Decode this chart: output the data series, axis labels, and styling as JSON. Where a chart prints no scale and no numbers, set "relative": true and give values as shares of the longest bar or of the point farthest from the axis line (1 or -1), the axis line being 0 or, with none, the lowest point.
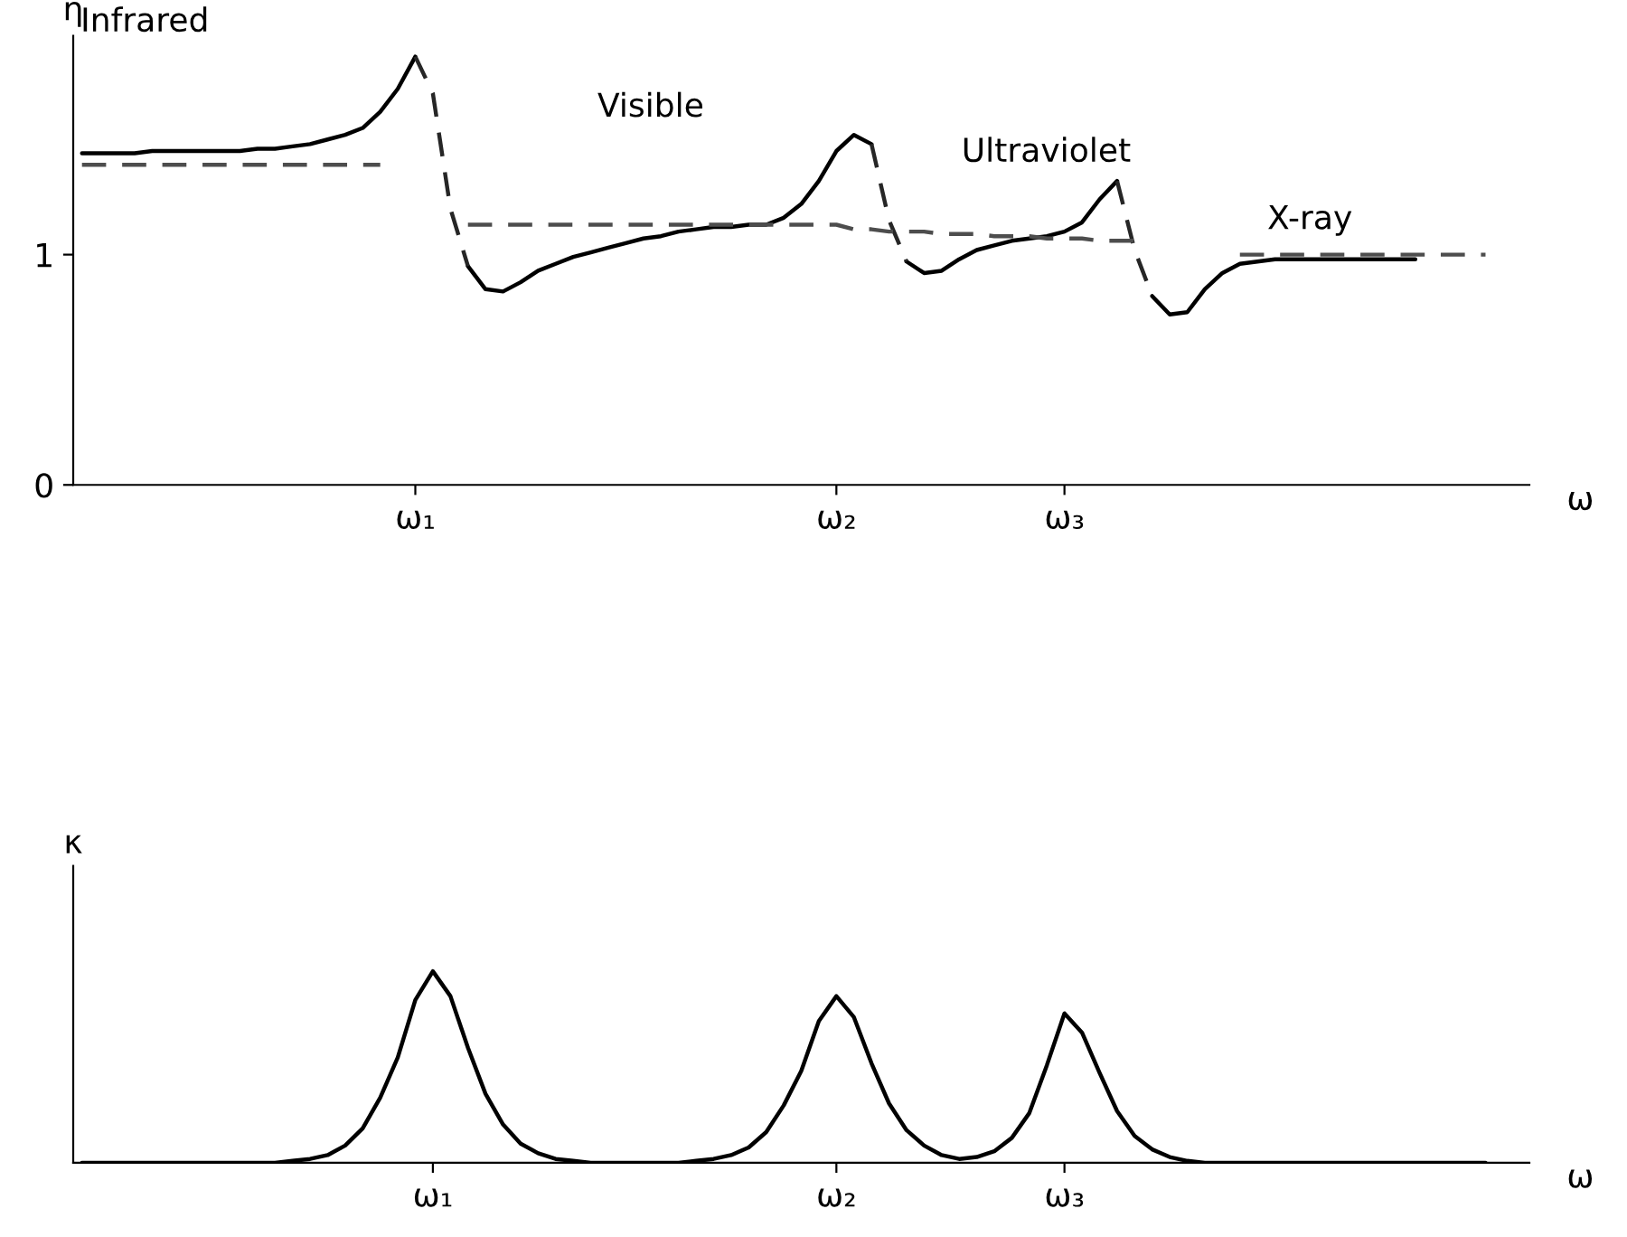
{
  "chart_data": [
    {
      "type": "line",
      "ylabel": "η",
      "xlabel": "ω",
      "ylim": [
        0,
        1.95
      ],
      "yticks": [
        0,
        1
      ],
      "grid": false,
      "legend": false,
      "marker": "none",
      "categories": [
        null,
        null,
        null,
        null,
        null,
        null,
        null,
        null,
        null,
        null,
        null,
        null,
        null,
        null,
        null,
        null,
        null,
        null,
        null,
        "ω₁",
        null,
        null,
        null,
        null,
        null,
        null,
        null,
        null,
        null,
        null,
        null,
        null,
        null,
        null,
        null,
        null,
        null,
        null,
        null,
        null,
        null,
        null,
        null,
        "ω₂",
        null,
        null,
        null,
        null,
        null,
        null,
        null,
        null,
        null,
        null,
        null,
        null,
        "ω₃",
        null,
        null,
        null,
        null,
        null,
        null,
        null,
        null,
        null,
        null,
        null,
        null,
        null,
        null,
        null,
        null,
        null,
        null,
        null,
        null,
        null,
        null,
        null,
        null
      ],
      "series": [
        {
          "color": "#000000",
          "line_style": "solid",
          "values": [
            1.44,
            1.44,
            1.44,
            1.44,
            1.45,
            1.45,
            1.45,
            1.45,
            1.45,
            1.45,
            1.46,
            1.46,
            1.47,
            1.48,
            1.5,
            1.52,
            1.55,
            1.62,
            1.72,
            1.86,
            null,
            null,
            0.95,
            0.85,
            0.84,
            0.88,
            0.93,
            0.96,
            0.99,
            1.01,
            1.03,
            1.05,
            1.07,
            1.08,
            1.1,
            1.11,
            1.12,
            1.12,
            1.13,
            1.13,
            1.16,
            1.22,
            1.32,
            1.45,
            1.52,
            1.48,
            null,
            0.97,
            0.92,
            0.93,
            0.98,
            1.02,
            1.04,
            1.06,
            1.07,
            1.08,
            1.1,
            1.14,
            1.24,
            1.32,
            null,
            0.82,
            0.74,
            0.75,
            0.85,
            0.92,
            0.96,
            0.97,
            0.98,
            0.98,
            0.98,
            0.98,
            0.98,
            0.98,
            0.98,
            0.98,
            0.98,
            null,
            null,
            null,
            null
          ]
        },
        {
          "color": "#262626",
          "line_style": "dashed",
          "values": [
            null,
            null,
            null,
            null,
            null,
            null,
            null,
            null,
            null,
            null,
            null,
            null,
            null,
            null,
            null,
            null,
            null,
            null,
            null,
            1.86,
            1.7,
            1.2,
            0.95,
            null,
            null,
            null,
            null,
            null,
            null,
            null,
            null,
            null,
            null,
            null,
            null,
            null,
            null,
            null,
            null,
            null,
            null,
            null,
            null,
            null,
            null,
            1.48,
            1.15,
            0.97,
            null,
            null,
            null,
            null,
            null,
            null,
            null,
            null,
            null,
            null,
            null,
            1.32,
            1.02,
            0.82,
            null,
            null,
            null,
            null,
            null,
            null,
            null,
            null,
            null,
            null,
            null,
            null,
            null,
            null,
            null,
            null,
            null,
            null,
            null
          ]
        },
        {
          "color": "#4d4d4d",
          "line_style": "dashed",
          "values": [
            1.39,
            1.39,
            1.39,
            1.39,
            1.39,
            1.39,
            1.39,
            1.39,
            1.39,
            1.39,
            1.39,
            1.39,
            1.39,
            1.39,
            1.39,
            1.39,
            1.39,
            1.39,
            null,
            null,
            null,
            null,
            1.13,
            1.13,
            1.13,
            1.13,
            1.13,
            1.13,
            1.13,
            1.13,
            1.13,
            1.13,
            1.13,
            1.13,
            1.13,
            1.13,
            1.13,
            1.13,
            1.13,
            1.13,
            1.13,
            1.13,
            1.13,
            1.13,
            1.11,
            1.11,
            1.1,
            1.1,
            1.1,
            1.09,
            1.09,
            1.09,
            1.08,
            1.08,
            1.08,
            1.07,
            1.07,
            1.07,
            1.06,
            1.06,
            1.06,
            null,
            null,
            null,
            null,
            null,
            1.0,
            1.0,
            1.0,
            1.0,
            1.0,
            1.0,
            1.0,
            1.0,
            1.0,
            1.0,
            1.0,
            1.0,
            1.0,
            1.0,
            1.0
          ]
        }
      ],
      "annotations": [
        "Infrared",
        "Visible",
        "Ultraviolet",
        "X-ray"
      ]
    },
    {
      "type": "line",
      "ylabel": "κ",
      "xlabel": "ω",
      "relative": true,
      "grid": false,
      "legend": false,
      "marker": "none",
      "categories": [
        null,
        null,
        null,
        null,
        null,
        null,
        null,
        null,
        null,
        null,
        null,
        null,
        null,
        null,
        null,
        null,
        null,
        null,
        null,
        null,
        "ω₁",
        null,
        null,
        null,
        null,
        null,
        null,
        null,
        null,
        null,
        null,
        null,
        null,
        null,
        null,
        null,
        null,
        null,
        null,
        null,
        null,
        null,
        null,
        "ω₂",
        null,
        null,
        null,
        null,
        null,
        null,
        null,
        null,
        null,
        null,
        null,
        null,
        "ω₃",
        null,
        null,
        null,
        null,
        null,
        null,
        null,
        null,
        null,
        null,
        null,
        null,
        null,
        null,
        null,
        null,
        null,
        null,
        null,
        null,
        null,
        null,
        null,
        null
      ],
      "series": [
        {
          "color": "#000000",
          "line_style": "solid",
          "values": [
            0,
            0,
            0,
            0,
            0,
            0,
            0,
            0,
            0,
            0,
            0,
            0,
            0.01,
            0.02,
            0.04,
            0.09,
            0.18,
            0.34,
            0.55,
            0.85,
            1.0,
            0.87,
            0.6,
            0.36,
            0.2,
            0.1,
            0.05,
            0.02,
            0.01,
            0,
            0,
            0,
            0,
            0,
            0,
            0.01,
            0.02,
            0.04,
            0.08,
            0.16,
            0.3,
            0.48,
            0.74,
            0.87,
            0.76,
            0.52,
            0.31,
            0.17,
            0.09,
            0.04,
            0.02,
            0.03,
            0.06,
            0.13,
            0.26,
            0.51,
            0.78,
            0.68,
            0.47,
            0.27,
            0.14,
            0.07,
            0.03,
            0.01,
            0,
            0,
            0,
            0,
            0,
            0,
            0,
            0,
            0,
            0,
            0,
            0,
            0,
            0,
            0,
            0,
            0
          ]
        }
      ]
    }
  ]
}
